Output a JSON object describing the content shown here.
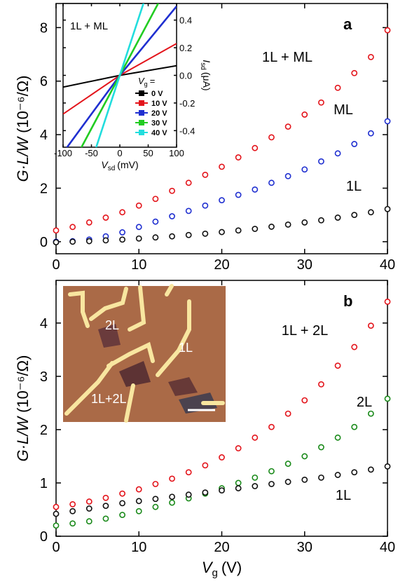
{
  "chart_data": [
    {
      "type": "scatter",
      "panel_label": "a",
      "x": [
        0,
        2,
        4,
        6,
        8,
        10,
        12,
        14,
        16,
        18,
        20,
        22,
        24,
        26,
        28,
        30,
        32,
        34,
        36,
        38,
        40
      ],
      "series": [
        {
          "name": "1L + ML",
          "color": "#e3141b",
          "values": [
            0.42,
            0.55,
            0.72,
            0.9,
            1.1,
            1.35,
            1.6,
            1.9,
            2.2,
            2.5,
            2.8,
            3.15,
            3.5,
            3.9,
            4.3,
            4.75,
            5.2,
            5.75,
            6.3,
            6.9,
            7.9
          ]
        },
        {
          "name": "ML",
          "color": "#1f2fd0",
          "values": [
            0.0,
            0.02,
            0.08,
            0.2,
            0.35,
            0.55,
            0.75,
            0.95,
            1.15,
            1.35,
            1.55,
            1.75,
            1.95,
            2.2,
            2.45,
            2.7,
            3.0,
            3.3,
            3.65,
            4.05,
            4.5
          ]
        },
        {
          "name": "1L",
          "color": "#111111",
          "values": [
            -0.02,
            0.0,
            0.02,
            0.05,
            0.08,
            0.12,
            0.16,
            0.2,
            0.25,
            0.3,
            0.36,
            0.42,
            0.48,
            0.56,
            0.64,
            0.72,
            0.8,
            0.9,
            1.0,
            1.1,
            1.22
          ]
        }
      ],
      "xlim": [
        0,
        40
      ],
      "xticks": [
        0,
        10,
        20,
        30,
        40
      ],
      "ylim": [
        -0.45,
        8.9
      ],
      "yticks": [
        0,
        2,
        4,
        6,
        8
      ],
      "y_label": {
        "quantity": "G·L/W",
        "unit": "(10⁻⁶/Ω)"
      }
    },
    {
      "type": "line",
      "annotation": "1L + ML",
      "y_axis_side": "right",
      "x": [
        -100,
        0,
        100
      ],
      "series": [
        {
          "name": "0 V",
          "color": "#000000",
          "values": [
            -0.085,
            0,
            0.07
          ]
        },
        {
          "name": "10 V",
          "color": "#e3141b",
          "values": [
            -0.28,
            0,
            0.23
          ]
        },
        {
          "name": "20 V",
          "color": "#1f2fd0",
          "values": [
            -0.56,
            0,
            0.5
          ]
        },
        {
          "name": "30 V",
          "color": "#22cc22",
          "values": [
            -0.77,
            0,
            0.77
          ]
        },
        {
          "name": "40 V",
          "color": "#22dddd",
          "values": [
            -1.25,
            0,
            1.25
          ]
        }
      ],
      "legend_title": {
        "symbol": "V",
        "subscript": "g",
        "suffix": "="
      },
      "xlim": [
        -100,
        100
      ],
      "xticks": [
        -100,
        -50,
        0,
        50,
        100
      ],
      "ylim": [
        -0.52,
        0.52
      ],
      "yticks": [
        -0.4,
        -0.2,
        {
          "value": 0,
          "label": "0.0"
        },
        0.2,
        0.4
      ],
      "x_label": {
        "symbol": "V",
        "subscript": "sd",
        "unit": "(mV)"
      },
      "y_label": {
        "symbol": "I",
        "subscript": "sd",
        "unit": "(μA)"
      }
    },
    {
      "type": "scatter",
      "panel_label": "b",
      "x": [
        0,
        2,
        4,
        6,
        8,
        10,
        12,
        14,
        16,
        18,
        20,
        22,
        24,
        26,
        28,
        30,
        32,
        34,
        36,
        38,
        40
      ],
      "series": [
        {
          "name": "1L + 2L",
          "color": "#e3141b",
          "values": [
            0.55,
            0.6,
            0.65,
            0.72,
            0.8,
            0.88,
            0.98,
            1.08,
            1.2,
            1.33,
            1.48,
            1.65,
            1.85,
            2.05,
            2.3,
            2.55,
            2.85,
            3.2,
            3.55,
            3.95,
            4.4
          ]
        },
        {
          "name": "2L",
          "color": "#1a8a1a",
          "values": [
            0.2,
            0.24,
            0.28,
            0.33,
            0.4,
            0.47,
            0.55,
            0.63,
            0.71,
            0.8,
            0.9,
            1.0,
            1.1,
            1.22,
            1.36,
            1.5,
            1.67,
            1.85,
            2.05,
            2.3,
            2.58
          ]
        },
        {
          "name": "1L",
          "color": "#111111",
          "values": [
            0.42,
            0.47,
            0.52,
            0.57,
            0.62,
            0.66,
            0.7,
            0.74,
            0.78,
            0.82,
            0.86,
            0.9,
            0.94,
            0.98,
            1.02,
            1.06,
            1.1,
            1.15,
            1.2,
            1.25,
            1.31
          ]
        }
      ],
      "xlim": [
        0,
        40
      ],
      "xticks": [
        0,
        10,
        20,
        30,
        40
      ],
      "ylim": [
        0,
        4.8
      ],
      "yticks": [
        0,
        1,
        2,
        3,
        4
      ],
      "y_label": {
        "quantity": "G·L/W",
        "unit": "(10⁻⁶/Ω)"
      },
      "x_label": {
        "symbol": "V",
        "subscript": "g",
        "unit": "(V)"
      },
      "image_labels": [
        "2L",
        "1L",
        "1L+2L"
      ]
    }
  ]
}
